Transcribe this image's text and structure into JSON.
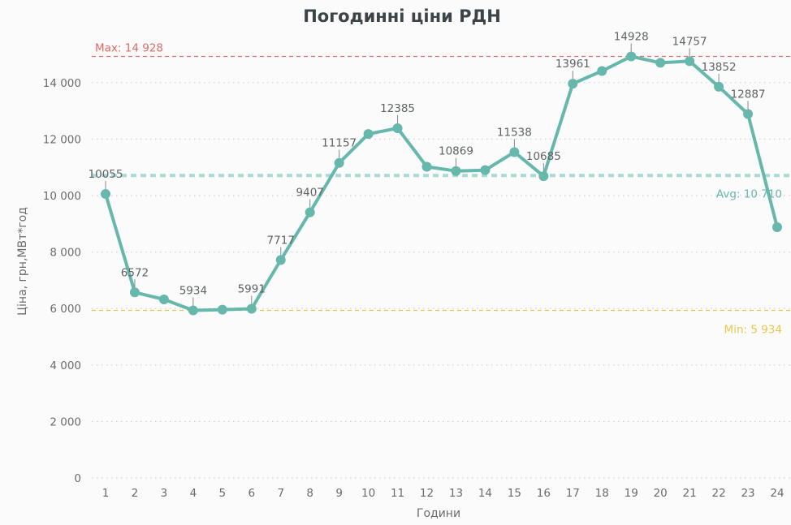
{
  "colors": {
    "line": "#65b8ab",
    "max": "#e06b68",
    "avg": "#a8dbd2",
    "avg_label": "#65b8ab",
    "min": "#e8c84a",
    "grid": "#c9c9c9",
    "title": "#3d4448",
    "text": "#6b6b6b"
  },
  "chart_data": {
    "type": "line",
    "title": "Погодинні ціни РДН",
    "xlabel": "Години",
    "ylabel": "Ціна, грн,МВт*год",
    "categories": [
      "1",
      "2",
      "3",
      "4",
      "5",
      "6",
      "7",
      "8",
      "9",
      "10",
      "11",
      "12",
      "13",
      "14",
      "15",
      "16",
      "17",
      "18",
      "19",
      "20",
      "21",
      "22",
      "23",
      "24"
    ],
    "values": [
      10055,
      6572,
      6320,
      5934,
      5960,
      5991,
      7717,
      9407,
      11157,
      12180,
      12385,
      11020,
      10869,
      10900,
      11538,
      10685,
      13961,
      14410,
      14928,
      14700,
      14757,
      13852,
      12887,
      8880
    ],
    "data_labels": [
      {
        "index": 0,
        "text": "10055"
      },
      {
        "index": 1,
        "text": "6572"
      },
      {
        "index": 3,
        "text": "5934"
      },
      {
        "index": 5,
        "text": "5991"
      },
      {
        "index": 6,
        "text": "7717"
      },
      {
        "index": 7,
        "text": "9407"
      },
      {
        "index": 8,
        "text": "11157"
      },
      {
        "index": 10,
        "text": "12385"
      },
      {
        "index": 12,
        "text": "10869"
      },
      {
        "index": 14,
        "text": "11538"
      },
      {
        "index": 15,
        "text": "10685"
      },
      {
        "index": 16,
        "text": "13961"
      },
      {
        "index": 18,
        "text": "14928"
      },
      {
        "index": 20,
        "text": "14757"
      },
      {
        "index": 21,
        "text": "13852"
      },
      {
        "index": 22,
        "text": "12887"
      }
    ],
    "ylim": [
      0,
      15200
    ],
    "yticks": [
      0,
      2000,
      4000,
      6000,
      8000,
      10000,
      12000,
      14000
    ],
    "ytick_labels": [
      "0",
      "2 000",
      "4 000",
      "6 000",
      "8 000",
      "10 000",
      "12 000",
      "14 000"
    ],
    "grid": true,
    "reference_lines": [
      {
        "kind": "max",
        "value": 14928,
        "label": "Max: 14 928",
        "style": "dashed"
      },
      {
        "kind": "avg",
        "value": 10710,
        "label": "Avg: 10 710",
        "style": "dashed"
      },
      {
        "kind": "min",
        "value": 5934,
        "label": "Min: 5 934",
        "style": "dashed"
      }
    ]
  }
}
